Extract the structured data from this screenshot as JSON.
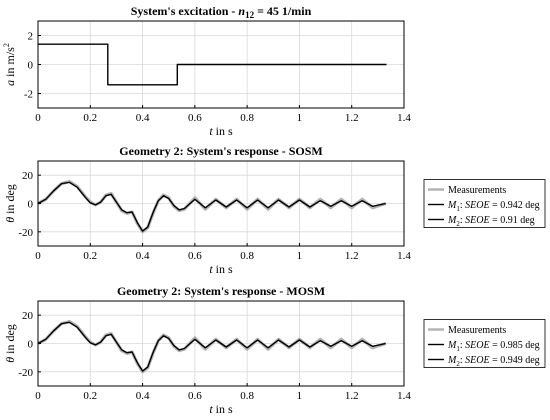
{
  "chart_data": [
    {
      "type": "line",
      "title": "System's excitation - n12 = 45 1/min",
      "title_parts": {
        "prefix": "System's excitation - ",
        "symbol": "n",
        "subscript": "12",
        "suffix": " = 45 1/min"
      },
      "xlabel": "t in s",
      "ylabel": "a in m/s2",
      "ylabel_parts": {
        "main": "a in m/s",
        "superscript": "2"
      },
      "xlim": [
        0,
        1.4
      ],
      "ylim": [
        -3,
        3
      ],
      "xticks": [
        "0",
        "0.2",
        "0.4",
        "0.6",
        "0.8",
        "1",
        "1.2",
        "1.4"
      ],
      "yticks": [
        "2",
        "0",
        "-2"
      ],
      "grid": true,
      "series": [
        {
          "color": "#000000",
          "x": [
            0,
            0.267,
            0.267,
            0.533,
            0.533,
            1.333
          ],
          "y": [
            1.4,
            1.4,
            -1.4,
            -1.4,
            0,
            0
          ]
        }
      ]
    },
    {
      "type": "line",
      "title": "Geometry 2: System's response - SOSM",
      "xlabel": "t in s",
      "ylabel": "θ in deg",
      "xlim": [
        0,
        1.4
      ],
      "ylim": [
        -30,
        30
      ],
      "xticks": [
        "0",
        "0.2",
        "0.4",
        "0.6",
        "0.8",
        "1",
        "1.2",
        "1.4"
      ],
      "yticks": [
        "20",
        "0",
        "-20"
      ],
      "grid": true,
      "legend_position": "outside-right",
      "series": [
        {
          "name": "Measurements",
          "color": "#b3b3b3",
          "x": [
            0,
            0.03,
            0.06,
            0.09,
            0.12,
            0.15,
            0.18,
            0.2,
            0.22,
            0.24,
            0.26,
            0.28,
            0.3,
            0.32,
            0.34,
            0.36,
            0.38,
            0.4,
            0.42,
            0.44,
            0.46,
            0.48,
            0.5,
            0.52,
            0.54,
            0.56,
            0.6,
            0.64,
            0.68,
            0.72,
            0.76,
            0.8,
            0.84,
            0.88,
            0.92,
            0.96,
            1.0,
            1.04,
            1.08,
            1.12,
            1.16,
            1.2,
            1.24,
            1.28,
            1.33
          ],
          "y": [
            0,
            3,
            9,
            14,
            15.5,
            12,
            5,
            1,
            -1,
            1,
            6,
            7,
            1,
            -5,
            -7,
            -6,
            -14,
            -20,
            -17,
            -7,
            2,
            6,
            4,
            -2,
            -5,
            -4,
            4,
            -4,
            3,
            -3,
            3,
            -4,
            3,
            -4,
            3,
            -3,
            3,
            -3,
            3,
            -3,
            3,
            -3,
            3,
            -3,
            0
          ]
        },
        {
          "name_parts": {
            "symbol": "M",
            "subscript": "1",
            "sep": ": ",
            "italic": "SEOE",
            "suffix": " = 0.942 deg"
          },
          "name": "M1: SEOE = 0.942 deg",
          "color": "#000000",
          "x": [
            0,
            0.03,
            0.06,
            0.09,
            0.12,
            0.15,
            0.18,
            0.2,
            0.22,
            0.24,
            0.26,
            0.28,
            0.3,
            0.32,
            0.34,
            0.36,
            0.38,
            0.4,
            0.42,
            0.44,
            0.46,
            0.48,
            0.5,
            0.52,
            0.54,
            0.56,
            0.6,
            0.64,
            0.68,
            0.72,
            0.76,
            0.8,
            0.84,
            0.88,
            0.92,
            0.96,
            1.0,
            1.04,
            1.08,
            1.12,
            1.16,
            1.2,
            1.24,
            1.28,
            1.33
          ],
          "y": [
            0,
            3,
            9,
            14,
            15,
            11.5,
            4.5,
            0.5,
            -1,
            1,
            5.5,
            6.5,
            1,
            -4.5,
            -6.5,
            -6,
            -13.5,
            -19.5,
            -16.5,
            -6.5,
            2,
            5.5,
            3.5,
            -1.5,
            -4.5,
            -3.5,
            3,
            -3,
            2.5,
            -2.5,
            2.5,
            -3,
            2.5,
            -3,
            2.5,
            -2.5,
            2.5,
            -2.5,
            2,
            -2,
            2,
            -2,
            2,
            -2,
            0
          ]
        },
        {
          "name_parts": {
            "symbol": "M",
            "subscript": "2",
            "sep": ": ",
            "italic": "SEOE",
            "suffix": " = 0.91 deg"
          },
          "name": "M2: SEOE = 0.91 deg",
          "color": "#000000"
        }
      ]
    },
    {
      "type": "line",
      "title": "Geometry 2: System's response - MOSM",
      "xlabel": "t in s",
      "ylabel": "θ in deg",
      "xlim": [
        0,
        1.4
      ],
      "ylim": [
        -30,
        30
      ],
      "xticks": [
        "0",
        "0.2",
        "0.4",
        "0.6",
        "0.8",
        "1",
        "1.2",
        "1.4"
      ],
      "yticks": [
        "20",
        "0",
        "-20"
      ],
      "grid": true,
      "legend_position": "outside-right",
      "series": [
        {
          "name": "Measurements",
          "color": "#b3b3b3",
          "x": [
            0,
            0.03,
            0.06,
            0.09,
            0.12,
            0.15,
            0.18,
            0.2,
            0.22,
            0.24,
            0.26,
            0.28,
            0.3,
            0.32,
            0.34,
            0.36,
            0.38,
            0.4,
            0.42,
            0.44,
            0.46,
            0.48,
            0.5,
            0.52,
            0.54,
            0.56,
            0.6,
            0.64,
            0.68,
            0.72,
            0.76,
            0.8,
            0.84,
            0.88,
            0.92,
            0.96,
            1.0,
            1.04,
            1.08,
            1.12,
            1.16,
            1.2,
            1.24,
            1.28,
            1.33
          ],
          "y": [
            0,
            3,
            9,
            14,
            15.5,
            12,
            5,
            1,
            -1,
            1,
            6,
            7,
            1,
            -5,
            -7,
            -6,
            -14,
            -20,
            -17,
            -7,
            2,
            6,
            4,
            -2,
            -5,
            -4,
            4,
            -4,
            3,
            -3,
            3,
            -4,
            3,
            -4,
            3,
            -3,
            3,
            -3,
            3,
            -3,
            3,
            -3,
            3,
            -3,
            0
          ]
        },
        {
          "name_parts": {
            "symbol": "M",
            "subscript": "1",
            "sep": ": ",
            "italic": "SEOE",
            "suffix": " = 0.985 deg"
          },
          "name": "M1: SEOE = 0.985 deg",
          "color": "#000000",
          "x": [
            0,
            0.03,
            0.06,
            0.09,
            0.12,
            0.15,
            0.18,
            0.2,
            0.22,
            0.24,
            0.26,
            0.28,
            0.3,
            0.32,
            0.34,
            0.36,
            0.38,
            0.4,
            0.42,
            0.44,
            0.46,
            0.48,
            0.5,
            0.52,
            0.54,
            0.56,
            0.6,
            0.64,
            0.68,
            0.72,
            0.76,
            0.8,
            0.84,
            0.88,
            0.92,
            0.96,
            1.0,
            1.04,
            1.08,
            1.12,
            1.16,
            1.2,
            1.24,
            1.28,
            1.33
          ],
          "y": [
            0,
            3,
            9,
            14,
            15,
            11.5,
            4.5,
            0.5,
            -1,
            1,
            5.5,
            6.5,
            1,
            -4.5,
            -6.5,
            -6,
            -13.5,
            -19.5,
            -16.5,
            -6.5,
            2,
            5.5,
            3.5,
            -1.5,
            -4.5,
            -3.5,
            3,
            -3,
            2.5,
            -2.5,
            2.5,
            -3,
            2.5,
            -3,
            2.5,
            -2.5,
            2.5,
            -2.5,
            2,
            -2,
            2,
            -2,
            2,
            -2,
            0
          ]
        },
        {
          "name_parts": {
            "symbol": "M",
            "subscript": "2",
            "sep": ": ",
            "italic": "SEOE",
            "suffix": " = 0.949 deg"
          },
          "name": "M2: SEOE = 0.949 deg",
          "color": "#000000"
        }
      ]
    }
  ]
}
